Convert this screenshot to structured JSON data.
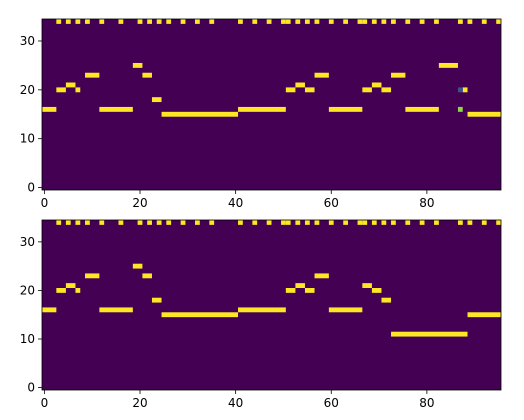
{
  "chart_data": [
    {
      "type": "heatmap",
      "colors": {
        "background": "#440154",
        "active": "#fde725",
        "mid": "#3b528b",
        "low": "#8fd744"
      },
      "x_range": [
        -0.5,
        95.5
      ],
      "y_range": [
        -0.5,
        34.5
      ],
      "x_ticks": [
        0,
        20,
        40,
        60,
        80
      ],
      "y_ticks": [
        0,
        10,
        20,
        30
      ],
      "x_tick_labels": [
        "0",
        "20",
        "40",
        "60",
        "80"
      ],
      "y_tick_labels": [
        "0",
        "10",
        "20",
        "30"
      ],
      "beat_row": 34,
      "beat_cols": [
        3,
        5,
        7,
        9,
        12,
        16,
        20,
        22,
        24,
        26,
        29,
        32,
        35,
        41,
        44,
        47,
        50,
        51,
        53,
        55,
        57,
        60,
        63,
        66,
        67,
        69,
        71,
        73,
        76,
        79,
        82,
        87,
        89,
        92,
        95
      ],
      "notes": [
        {
          "pitch": 16,
          "start": 0,
          "end": 2
        },
        {
          "pitch": 20,
          "start": 3,
          "end": 4
        },
        {
          "pitch": 21,
          "start": 5,
          "end": 6
        },
        {
          "pitch": 20,
          "start": 7,
          "end": 7
        },
        {
          "pitch": 23,
          "start": 9,
          "end": 11
        },
        {
          "pitch": 16,
          "start": 12,
          "end": 18
        },
        {
          "pitch": 25,
          "start": 19,
          "end": 20
        },
        {
          "pitch": 23,
          "start": 21,
          "end": 22
        },
        {
          "pitch": 18,
          "start": 23,
          "end": 24
        },
        {
          "pitch": 15,
          "start": 25,
          "end": 40
        },
        {
          "pitch": 16,
          "start": 41,
          "end": 50
        },
        {
          "pitch": 20,
          "start": 51,
          "end": 52
        },
        {
          "pitch": 21,
          "start": 53,
          "end": 54
        },
        {
          "pitch": 20,
          "start": 55,
          "end": 56
        },
        {
          "pitch": 23,
          "start": 57,
          "end": 59
        },
        {
          "pitch": 16,
          "start": 60,
          "end": 66
        },
        {
          "pitch": 20,
          "start": 67,
          "end": 68
        },
        {
          "pitch": 21,
          "start": 69,
          "end": 70
        },
        {
          "pitch": 20,
          "start": 71,
          "end": 72
        },
        {
          "pitch": 23,
          "start": 73,
          "end": 75
        },
        {
          "pitch": 16,
          "start": 76,
          "end": 82
        },
        {
          "pitch": 25,
          "start": 83,
          "end": 86
        },
        {
          "pitch": 20,
          "start": 88,
          "end": 88
        },
        {
          "pitch": 15,
          "start": 89,
          "end": 95
        }
      ],
      "extra_cells": [
        {
          "x": 87,
          "y": 20,
          "color": "#3b528b"
        },
        {
          "x": 87,
          "y": 16,
          "color": "#8fd744"
        }
      ]
    },
    {
      "type": "heatmap",
      "colors": {
        "background": "#440154",
        "active": "#fde725"
      },
      "x_range": [
        -0.5,
        95.5
      ],
      "y_range": [
        -0.5,
        34.5
      ],
      "x_ticks": [
        0,
        20,
        40,
        60,
        80
      ],
      "y_ticks": [
        0,
        10,
        20,
        30
      ],
      "x_tick_labels": [
        "0",
        "20",
        "40",
        "60",
        "80"
      ],
      "y_tick_labels": [
        "0",
        "10",
        "20",
        "30"
      ],
      "beat_row": 34,
      "beat_cols": [
        3,
        5,
        7,
        9,
        12,
        16,
        20,
        22,
        24,
        26,
        29,
        32,
        35,
        41,
        44,
        47,
        50,
        51,
        53,
        55,
        57,
        60,
        63,
        66,
        67,
        69,
        71,
        73,
        76,
        79,
        82,
        87,
        89,
        92,
        95
      ],
      "notes": [
        {
          "pitch": 16,
          "start": 0,
          "end": 2
        },
        {
          "pitch": 20,
          "start": 3,
          "end": 4
        },
        {
          "pitch": 21,
          "start": 5,
          "end": 6
        },
        {
          "pitch": 20,
          "start": 7,
          "end": 7
        },
        {
          "pitch": 23,
          "start": 9,
          "end": 11
        },
        {
          "pitch": 16,
          "start": 12,
          "end": 18
        },
        {
          "pitch": 25,
          "start": 19,
          "end": 20
        },
        {
          "pitch": 23,
          "start": 21,
          "end": 22
        },
        {
          "pitch": 18,
          "start": 23,
          "end": 24
        },
        {
          "pitch": 15,
          "start": 25,
          "end": 40
        },
        {
          "pitch": 16,
          "start": 41,
          "end": 50
        },
        {
          "pitch": 20,
          "start": 51,
          "end": 52
        },
        {
          "pitch": 21,
          "start": 53,
          "end": 54
        },
        {
          "pitch": 20,
          "start": 55,
          "end": 56
        },
        {
          "pitch": 23,
          "start": 57,
          "end": 59
        },
        {
          "pitch": 16,
          "start": 60,
          "end": 66
        },
        {
          "pitch": 21,
          "start": 67,
          "end": 68
        },
        {
          "pitch": 20,
          "start": 69,
          "end": 70
        },
        {
          "pitch": 18,
          "start": 71,
          "end": 72
        },
        {
          "pitch": 11,
          "start": 73,
          "end": 88
        },
        {
          "pitch": 15,
          "start": 89,
          "end": 95
        }
      ],
      "extra_cells": []
    }
  ]
}
